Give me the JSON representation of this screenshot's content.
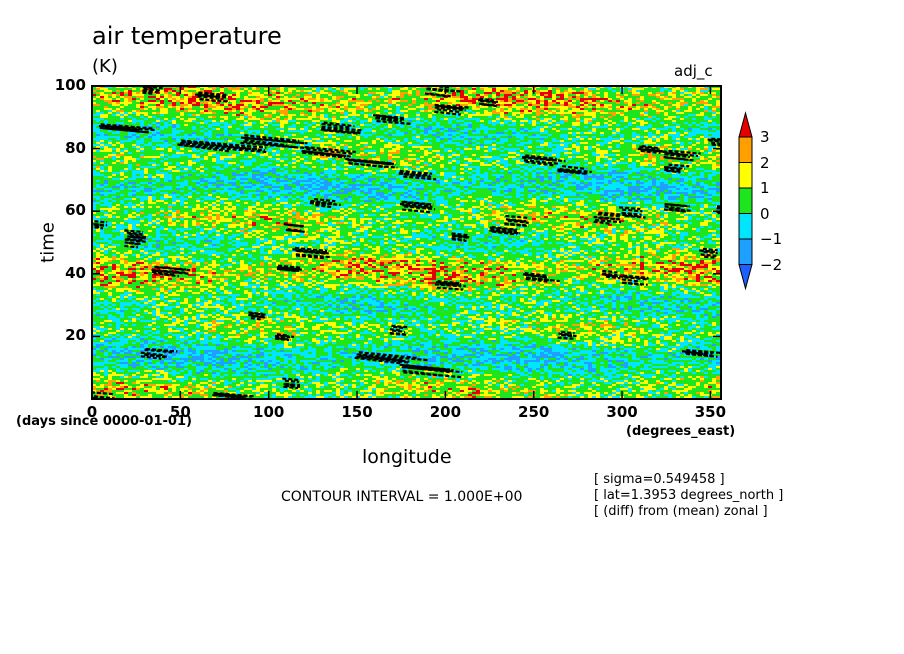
{
  "chart_data": {
    "type": "heatmap",
    "title": "air temperature",
    "units": "(K)",
    "variable_tag": "adj_c",
    "xlabel": "longitude",
    "ylabel": "time",
    "x_units": "(degrees_east)",
    "y_units": "(days since 0000-01-01)",
    "xlim": [
      0,
      356
    ],
    "ylim": [
      0,
      100
    ],
    "x_ticks": [
      0,
      50,
      100,
      150,
      200,
      250,
      300,
      350
    ],
    "y_ticks": [
      20,
      40,
      60,
      80,
      100
    ],
    "x_tick_labels": [
      "0",
      "50",
      "100",
      "150",
      "200",
      "250",
      "300",
      "350"
    ],
    "y_tick_labels": [
      "20",
      "40",
      "60",
      "80",
      "100"
    ],
    "colorbar": {
      "levels": [
        -2,
        -1,
        0,
        1,
        2,
        3
      ],
      "labels": [
        "3",
        "2",
        "1",
        "0",
        "−1",
        "−2"
      ],
      "colors": [
        "#1f5fff",
        "#1fa0ff",
        "#00e6ff",
        "#1ee61e",
        "#ffff00",
        "#ffa000",
        "#e60000"
      ]
    },
    "contour_interval": "CONTOUR INTERVAL = 1.000E+00",
    "meta_lines": [
      "[ sigma=0.549458 ]",
      "[ lat=1.3953 degrees_north ]",
      "[ (diff) from (mean) zonal ]"
    ],
    "cold_features": [
      [
        0,
        1,
        14
      ],
      [
        69,
        1,
        23
      ],
      [
        109,
        5,
        10
      ],
      [
        29,
        15,
        18
      ],
      [
        150,
        14,
        40
      ],
      [
        175,
        10,
        35
      ],
      [
        265,
        20,
        9
      ],
      [
        335,
        15,
        20
      ],
      [
        90,
        27,
        10
      ],
      [
        105,
        20,
        10
      ],
      [
        170,
        22,
        10
      ],
      [
        195,
        37,
        15
      ],
      [
        245,
        39,
        20
      ],
      [
        35,
        41,
        20
      ],
      [
        105,
        42,
        15
      ],
      [
        20,
        50,
        10
      ],
      [
        115,
        47,
        20
      ],
      [
        0,
        56,
        8
      ],
      [
        345,
        47,
        10
      ],
      [
        20,
        53,
        12
      ],
      [
        110,
        55,
        12
      ],
      [
        205,
        52,
        12
      ],
      [
        225,
        54,
        20
      ],
      [
        235,
        57,
        15
      ],
      [
        285,
        58,
        15
      ],
      [
        300,
        60,
        12
      ],
      [
        325,
        61,
        15
      ],
      [
        125,
        63,
        15
      ],
      [
        175,
        62,
        20
      ],
      [
        290,
        40,
        12
      ],
      [
        300,
        38,
        15
      ],
      [
        175,
        72,
        20
      ],
      [
        265,
        73,
        20
      ],
      [
        245,
        77,
        25
      ],
      [
        355,
        60,
        8
      ],
      [
        5,
        87,
        30
      ],
      [
        50,
        82,
        50
      ],
      [
        85,
        83,
        40
      ],
      [
        120,
        79,
        35
      ],
      [
        145,
        76,
        30
      ],
      [
        130,
        87,
        25
      ],
      [
        160,
        90,
        20
      ],
      [
        195,
        93,
        20
      ],
      [
        220,
        95,
        12
      ],
      [
        190,
        99,
        20
      ],
      [
        60,
        97,
        18
      ],
      [
        310,
        80,
        15
      ],
      [
        325,
        78,
        20
      ],
      [
        350,
        82,
        12
      ],
      [
        325,
        74,
        12
      ],
      [
        30,
        99,
        10
      ]
    ]
  }
}
